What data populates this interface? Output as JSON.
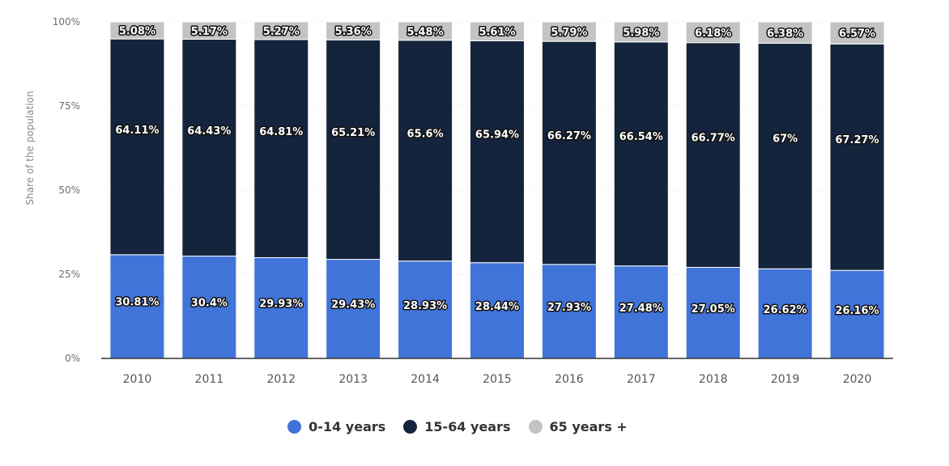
{
  "chart_data": {
    "type": "bar",
    "stacked": true,
    "categories": [
      "2010",
      "2011",
      "2012",
      "2013",
      "2014",
      "2015",
      "2016",
      "2017",
      "2018",
      "2019",
      "2020"
    ],
    "series": [
      {
        "name": "0-14 years",
        "color": "#4174d9",
        "values": [
          30.81,
          30.4,
          29.93,
          29.43,
          28.93,
          28.44,
          27.93,
          27.48,
          27.05,
          26.62,
          26.16
        ],
        "labels": [
          "30.81%",
          "30.4%",
          "29.93%",
          "29.43%",
          "28.93%",
          "28.44%",
          "27.93%",
          "27.48%",
          "27.05%",
          "26.62%",
          "26.16%"
        ]
      },
      {
        "name": "15-64 years",
        "color": "#14243c",
        "values": [
          64.11,
          64.43,
          64.81,
          65.21,
          65.6,
          65.94,
          66.27,
          66.54,
          66.77,
          67,
          67.27
        ],
        "labels": [
          "64.11%",
          "64.43%",
          "64.81%",
          "65.21%",
          "65.6%",
          "65.94%",
          "66.27%",
          "66.54%",
          "66.77%",
          "67%",
          "67.27%"
        ]
      },
      {
        "name": "65 years +",
        "color": "#c3c3c3",
        "values": [
          5.08,
          5.17,
          5.27,
          5.36,
          5.48,
          5.61,
          5.79,
          5.98,
          6.18,
          6.38,
          6.57
        ],
        "labels": [
          "5.08%",
          "5.17%",
          "5.27%",
          "5.36%",
          "5.48%",
          "5.61%",
          "5.79%",
          "5.98%",
          "6.18%",
          "6.38%",
          "6.57%"
        ]
      }
    ],
    "title": "",
    "xlabel": "",
    "ylabel": "Share of the population",
    "ylim": [
      0,
      100
    ],
    "yticks": [
      "0%",
      "25%",
      "50%",
      "75%",
      "100%"
    ],
    "grid": true,
    "legend_position": "bottom"
  }
}
